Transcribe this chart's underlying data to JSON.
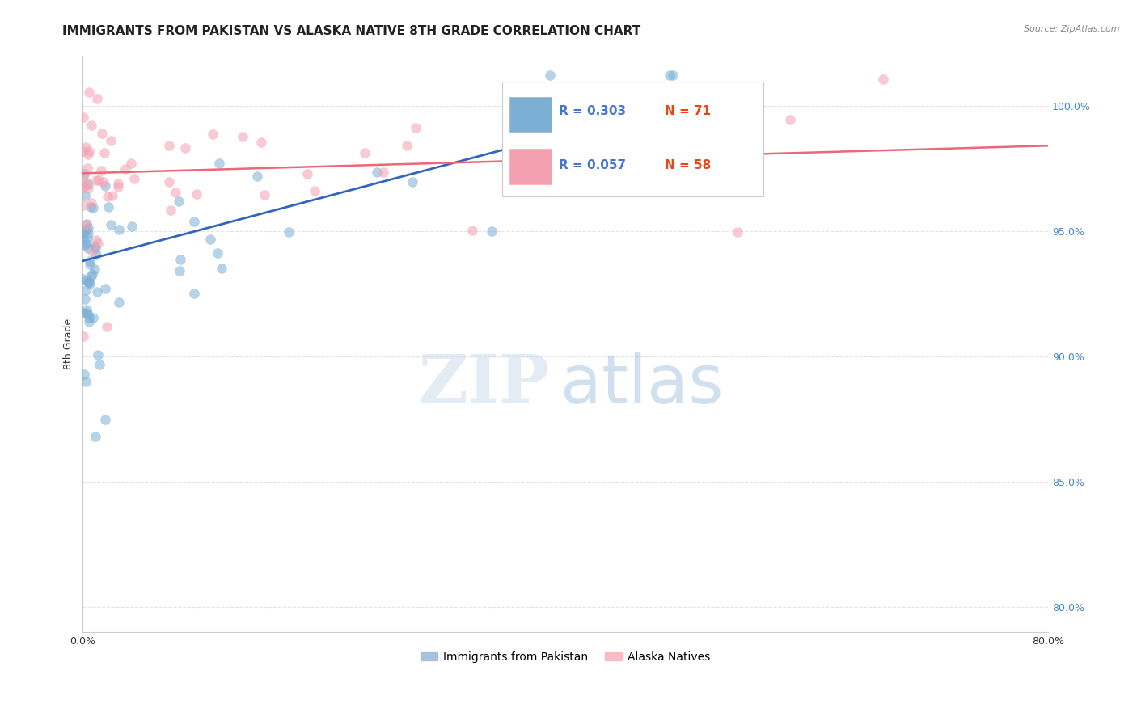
{
  "title": "IMMIGRANTS FROM PAKISTAN VS ALASKA NATIVE 8TH GRADE CORRELATION CHART",
  "source": "Source: ZipAtlas.com",
  "ylabel": "8th Grade",
  "ytick_vals": [
    80.0,
    85.0,
    90.0,
    95.0,
    100.0
  ],
  "ytick_labels": [
    "80.0%",
    "85.0%",
    "90.0%",
    "95.0%",
    "100.0%"
  ],
  "xlim": [
    0.0,
    80.0
  ],
  "ylim": [
    79.0,
    102.0
  ],
  "legend1_r": "0.303",
  "legend1_n": "71",
  "legend2_r": "0.057",
  "legend2_n": "58",
  "blue_color": "#7BAFD4",
  "pink_color": "#F4A0B0",
  "blue_line_color": "#3366BB",
  "pink_line_color": "#EE6677",
  "blue_line_x0": 0.0,
  "blue_line_y0": 93.8,
  "blue_line_x1": 55.0,
  "blue_line_y1": 100.8,
  "pink_line_x0": 0.0,
  "pink_line_y0": 97.3,
  "pink_line_x1": 80.0,
  "pink_line_y1": 98.4,
  "grid_color": "#DDDDDD",
  "background_color": "#FFFFFF",
  "title_fontsize": 11,
  "axis_label_fontsize": 9,
  "tick_label_fontsize": 9
}
